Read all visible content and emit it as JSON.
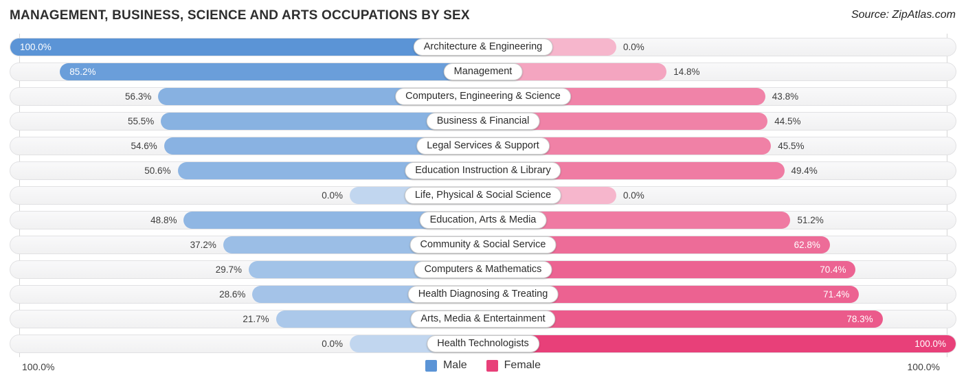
{
  "title": "MANAGEMENT, BUSINESS, SCIENCE AND ARTS OCCUPATIONS BY SEX",
  "source": "Source: ZipAtlas.com",
  "axis": {
    "left_label": "100.0%",
    "right_label": "100.0%"
  },
  "legend": {
    "male_label": "Male",
    "female_label": "Female"
  },
  "colors": {
    "male_base": "#5b94d6",
    "female_base": "#e84079",
    "male_rgb": [
      91,
      148,
      214
    ],
    "female_rgb": [
      232,
      64,
      121
    ],
    "track": "#f5f5f6",
    "track_border": "#e1e1e3",
    "value_text": "#3c3c3c",
    "inside_value_text": "#ffffff"
  },
  "chart_data": {
    "type": "bar",
    "orientation": "horizontal-diverging",
    "title": "MANAGEMENT, BUSINESS, SCIENCE AND ARTS OCCUPATIONS BY SEX",
    "xlim": [
      0,
      100
    ],
    "x_axis_end_labels": [
      "100.0%",
      "100.0%"
    ],
    "legend_position": "bottom-center",
    "grid": false,
    "categories": [
      "Architecture & Engineering",
      "Management",
      "Computers, Engineering & Science",
      "Business & Financial",
      "Legal Services & Support",
      "Education Instruction & Library",
      "Life, Physical & Social Science",
      "Education, Arts & Media",
      "Community & Social Service",
      "Computers & Mathematics",
      "Health Diagnosing & Treating",
      "Arts, Media & Entertainment",
      "Health Technologists"
    ],
    "series": [
      {
        "name": "Male",
        "values": [
          100.0,
          85.2,
          56.3,
          55.5,
          54.6,
          50.6,
          0.0,
          48.8,
          37.2,
          29.7,
          28.6,
          21.7,
          0.0
        ],
        "labels": [
          "100.0%",
          "85.2%",
          "56.3%",
          "55.5%",
          "54.6%",
          "50.6%",
          "0.0%",
          "48.8%",
          "37.2%",
          "29.7%",
          "28.6%",
          "21.7%",
          "0.0%"
        ]
      },
      {
        "name": "Female",
        "values": [
          0.0,
          14.8,
          43.8,
          44.5,
          45.5,
          49.4,
          0.0,
          51.2,
          62.8,
          70.4,
          71.4,
          78.3,
          100.0
        ],
        "labels": [
          "0.0%",
          "14.8%",
          "43.8%",
          "44.5%",
          "45.5%",
          "49.4%",
          "0.0%",
          "51.2%",
          "62.8%",
          "70.4%",
          "71.4%",
          "78.3%",
          "100.0%"
        ]
      }
    ]
  }
}
